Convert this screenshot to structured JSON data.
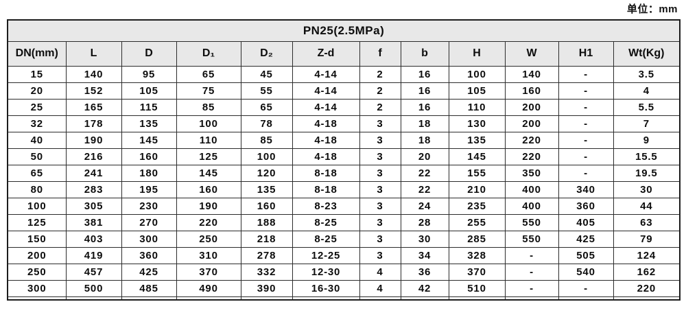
{
  "unit_label": "单位：mm",
  "table": {
    "title": "PN25(2.5MPa)",
    "headers": [
      "DN(mm)",
      "L",
      "D",
      "D₁",
      "D₂",
      "Z-d",
      "f",
      "b",
      "H",
      "W",
      "H1",
      "Wt(Kg)"
    ],
    "rows": [
      [
        "15",
        "140",
        "95",
        "65",
        "45",
        "4-14",
        "2",
        "16",
        "100",
        "140",
        "-",
        "3.5"
      ],
      [
        "20",
        "152",
        "105",
        "75",
        "55",
        "4-14",
        "2",
        "16",
        "105",
        "160",
        "-",
        "4"
      ],
      [
        "25",
        "165",
        "115",
        "85",
        "65",
        "4-14",
        "2",
        "16",
        "110",
        "200",
        "-",
        "5.5"
      ],
      [
        "32",
        "178",
        "135",
        "100",
        "78",
        "4-18",
        "3",
        "18",
        "130",
        "200",
        "-",
        "7"
      ],
      [
        "40",
        "190",
        "145",
        "110",
        "85",
        "4-18",
        "3",
        "18",
        "135",
        "220",
        "-",
        "9"
      ],
      [
        "50",
        "216",
        "160",
        "125",
        "100",
        "4-18",
        "3",
        "20",
        "145",
        "220",
        "-",
        "15.5"
      ],
      [
        "65",
        "241",
        "180",
        "145",
        "120",
        "8-18",
        "3",
        "22",
        "155",
        "350",
        "-",
        "19.5"
      ],
      [
        "80",
        "283",
        "195",
        "160",
        "135",
        "8-18",
        "3",
        "22",
        "210",
        "400",
        "340",
        "30"
      ],
      [
        "100",
        "305",
        "230",
        "190",
        "160",
        "8-23",
        "3",
        "24",
        "235",
        "400",
        "360",
        "44"
      ],
      [
        "125",
        "381",
        "270",
        "220",
        "188",
        "8-25",
        "3",
        "28",
        "255",
        "550",
        "405",
        "63"
      ],
      [
        "150",
        "403",
        "300",
        "250",
        "218",
        "8-25",
        "3",
        "30",
        "285",
        "550",
        "425",
        "79"
      ],
      [
        "200",
        "419",
        "360",
        "310",
        "278",
        "12-25",
        "3",
        "34",
        "328",
        "-",
        "505",
        "124"
      ],
      [
        "250",
        "457",
        "425",
        "370",
        "332",
        "12-30",
        "4",
        "36",
        "370",
        "-",
        "540",
        "162"
      ],
      [
        "300",
        "500",
        "485",
        "490",
        "390",
        "16-30",
        "4",
        "42",
        "510",
        "-",
        "-",
        "220"
      ]
    ]
  },
  "colors": {
    "header_background": "#e8e8e8",
    "border": "#2b2b2b",
    "text": "#0d0d0d",
    "page_background": "#ffffff"
  }
}
